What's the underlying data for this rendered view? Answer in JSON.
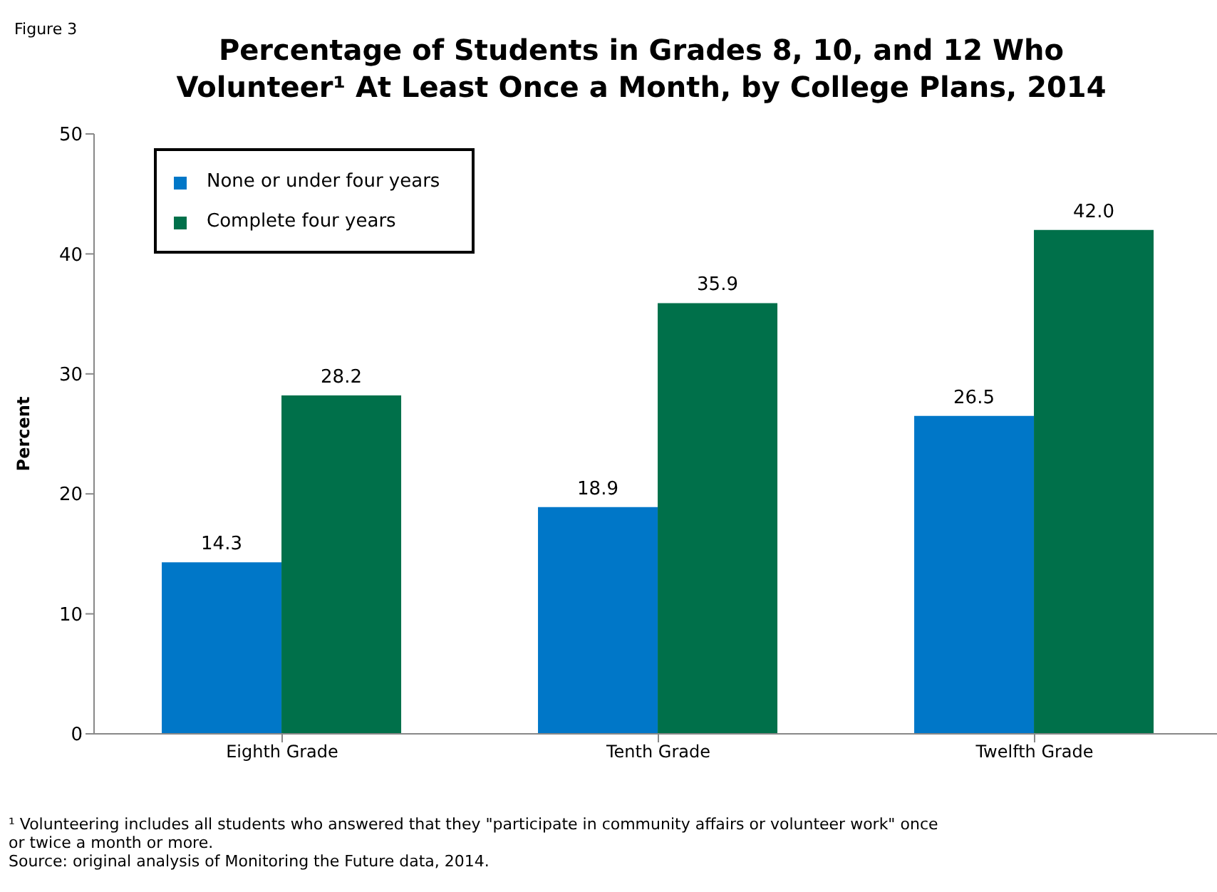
{
  "chart_data": {
    "type": "bar",
    "title": "Percentage of Students in Grades 8, 10, and 12 Who Volunteer¹ At Least Once a Month, by College Plans, 2014",
    "ylabel": "Percent",
    "categories": [
      "Eighth Grade",
      "Tenth Grade",
      "Twelfth Grade"
    ],
    "series": [
      {
        "name": "None or under four years",
        "color": "#0077c8",
        "values": [
          14.3,
          18.9,
          26.5
        ],
        "value_labels": [
          "14.3",
          "18.9",
          "26.5"
        ]
      },
      {
        "name": "Complete four years",
        "color": "#00704a",
        "values": [
          28.2,
          35.9,
          42.0
        ],
        "value_labels": [
          "28.2",
          "35.9",
          "42.0"
        ]
      }
    ],
    "ylim": [
      0,
      50
    ],
    "yticks": [
      0,
      10,
      20,
      30,
      40,
      50
    ],
    "legend": "top left",
    "annotations": [
      "Figure 3",
      "¹ Volunteering includes all students who answered that they \"participate in community affairs or volunteer work\" once or twice a month or more.",
      "Source: original analysis of Monitoring the Future data, 2014."
    ]
  }
}
